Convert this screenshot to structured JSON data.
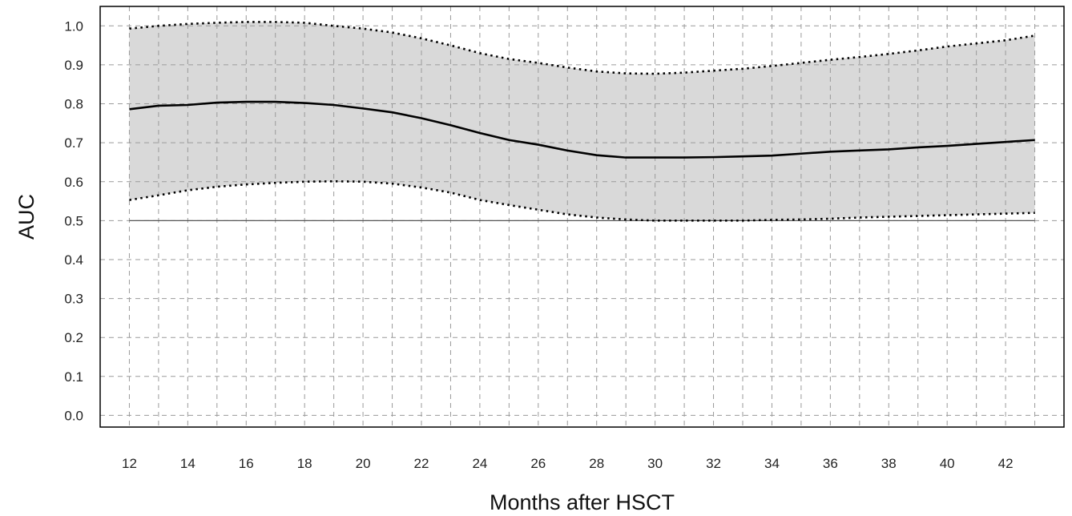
{
  "chart_data": {
    "type": "line",
    "title": "",
    "xlabel": "Months after HSCT",
    "ylabel": "AUC",
    "xlim": [
      11,
      44
    ],
    "ylim": [
      -0.03,
      1.05
    ],
    "x_ticks": [
      12,
      14,
      16,
      18,
      20,
      22,
      24,
      26,
      28,
      30,
      32,
      34,
      36,
      38,
      40,
      42
    ],
    "x_tick_labels": [
      "12",
      "14",
      "16",
      "18",
      "20",
      "22",
      "24",
      "26",
      "28",
      "30",
      "32",
      "34",
      "36",
      "38",
      "40",
      "42"
    ],
    "y_ticks": [
      0.0,
      0.1,
      0.2,
      0.3,
      0.4,
      0.5,
      0.6,
      0.7,
      0.8,
      0.9,
      1.0
    ],
    "y_tick_labels": [
      "0.0",
      "0.1",
      "0.2",
      "0.3",
      "0.4",
      "0.5",
      "0.6",
      "0.7",
      "0.8",
      "0.9",
      "1.0"
    ],
    "grid": true,
    "reference_line_y": 0.5,
    "x": [
      12,
      13,
      14,
      15,
      16,
      17,
      18,
      19,
      20,
      21,
      22,
      23,
      24,
      25,
      26,
      27,
      28,
      29,
      30,
      31,
      32,
      33,
      34,
      35,
      36,
      37,
      38,
      39,
      40,
      41,
      42,
      43
    ],
    "series": [
      {
        "role": "estimate",
        "style": "solid",
        "values": [
          0.786,
          0.795,
          0.797,
          0.803,
          0.805,
          0.805,
          0.802,
          0.797,
          0.788,
          0.778,
          0.763,
          0.745,
          0.725,
          0.707,
          0.695,
          0.68,
          0.668,
          0.662,
          0.662,
          0.662,
          0.663,
          0.665,
          0.667,
          0.672,
          0.677,
          0.68,
          0.683,
          0.688,
          0.692,
          0.697,
          0.702,
          0.707
        ]
      },
      {
        "role": "upper",
        "style": "dotted",
        "values": [
          0.993,
          1.0,
          1.005,
          1.008,
          1.01,
          1.01,
          1.008,
          1.0,
          0.993,
          0.983,
          0.968,
          0.95,
          0.93,
          0.915,
          0.905,
          0.893,
          0.883,
          0.878,
          0.877,
          0.88,
          0.885,
          0.89,
          0.897,
          0.905,
          0.913,
          0.92,
          0.928,
          0.937,
          0.947,
          0.955,
          0.963,
          0.975
        ]
      },
      {
        "role": "lower",
        "style": "dotted",
        "values": [
          0.553,
          0.565,
          0.578,
          0.587,
          0.593,
          0.597,
          0.6,
          0.601,
          0.6,
          0.595,
          0.585,
          0.572,
          0.553,
          0.54,
          0.528,
          0.516,
          0.508,
          0.503,
          0.5,
          0.5,
          0.5,
          0.5,
          0.502,
          0.503,
          0.505,
          0.508,
          0.51,
          0.512,
          0.514,
          0.516,
          0.518,
          0.52
        ]
      }
    ],
    "colors": {
      "band": "#d9d9d9",
      "line": "#000000",
      "grid": "#9a9a9a",
      "axis": "#000000",
      "reference": "#555555"
    }
  }
}
